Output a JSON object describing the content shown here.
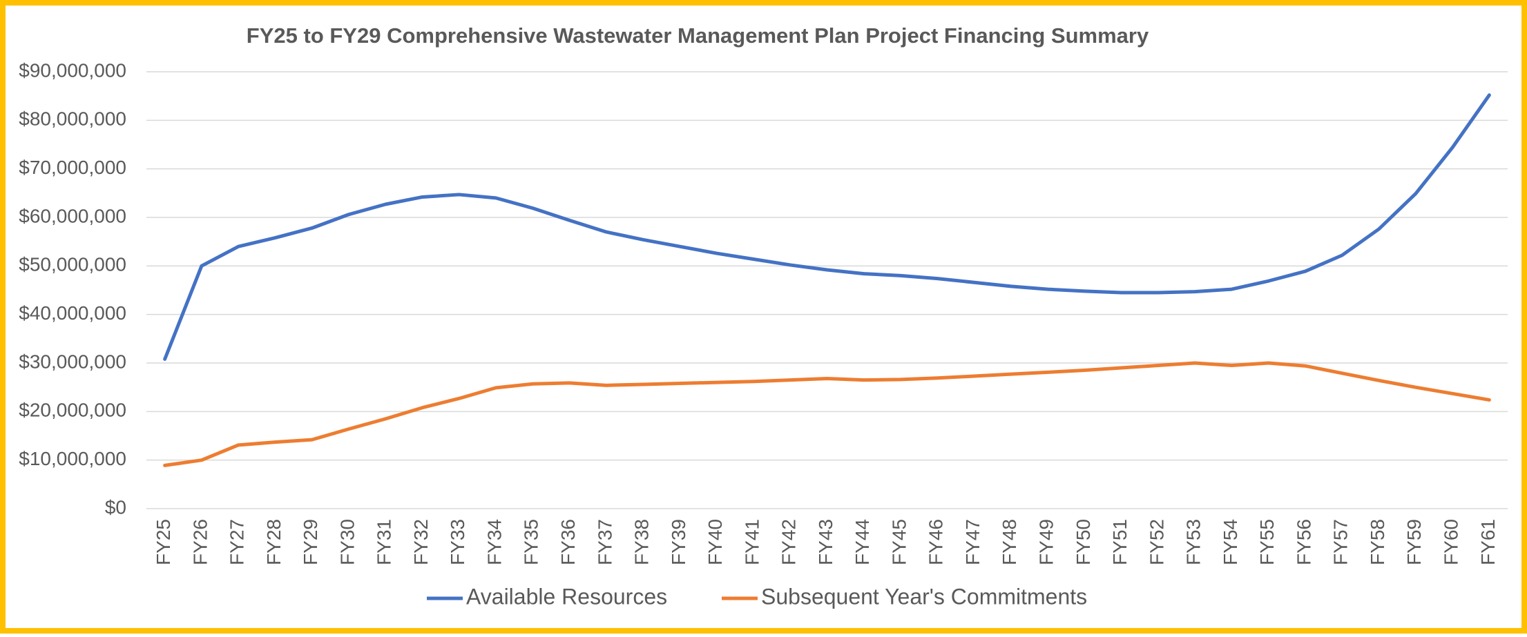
{
  "chart_data": {
    "type": "line",
    "title": "FY25 to FY29 Comprehensive Wastewater Management Plan Project Financing Summary",
    "categories": [
      "FY25",
      "FY26",
      "FY27",
      "FY28",
      "FY29",
      "FY30",
      "FY31",
      "FY32",
      "FY33",
      "FY34",
      "FY35",
      "FY36",
      "FY37",
      "FY38",
      "FY39",
      "FY40",
      "FY41",
      "FY42",
      "FY43",
      "FY44",
      "FY45",
      "FY46",
      "FY47",
      "FY48",
      "FY49",
      "FY50",
      "FY51",
      "FY52",
      "FY53",
      "FY54",
      "FY55",
      "FY56",
      "FY57",
      "FY58",
      "FY59",
      "FY60",
      "FY61"
    ],
    "series": [
      {
        "name": "Available Resources",
        "color": "#4472c4",
        "values": [
          30800000,
          50000000,
          54000000,
          55800000,
          57800000,
          60600000,
          62700000,
          64200000,
          64700000,
          64000000,
          61900000,
          59400000,
          57000000,
          55400000,
          54000000,
          52600000,
          51400000,
          50200000,
          49200000,
          48400000,
          48000000,
          47400000,
          46600000,
          45800000,
          45200000,
          44800000,
          44500000,
          44500000,
          44700000,
          45200000,
          46900000,
          48900000,
          52200000,
          57600000,
          64900000,
          74400000,
          85200000
        ]
      },
      {
        "name": "Subsequent Year's Commitments",
        "color": "#ed7d31",
        "values": [
          8900000,
          10000000,
          13100000,
          13700000,
          14200000,
          16400000,
          18500000,
          20800000,
          22700000,
          24900000,
          25700000,
          25900000,
          25400000,
          25600000,
          25800000,
          26000000,
          26200000,
          26500000,
          26800000,
          26500000,
          26600000,
          26900000,
          27300000,
          27700000,
          28100000,
          28500000,
          29000000,
          29500000,
          30000000,
          29500000,
          30000000,
          29400000,
          27900000,
          26400000,
          25000000,
          23700000,
          22400000
        ]
      }
    ],
    "ylim": [
      0,
      90000000
    ],
    "yticks": [
      {
        "value": 0,
        "label": "$0"
      },
      {
        "value": 10000000,
        "label": "$10,000,000"
      },
      {
        "value": 20000000,
        "label": "$20,000,000"
      },
      {
        "value": 30000000,
        "label": "$30,000,000"
      },
      {
        "value": 40000000,
        "label": "$40,000,000"
      },
      {
        "value": 50000000,
        "label": "$50,000,000"
      },
      {
        "value": 60000000,
        "label": "$60,000,000"
      },
      {
        "value": 70000000,
        "label": "$70,000,000"
      },
      {
        "value": 80000000,
        "label": "$80,000,000"
      },
      {
        "value": 90000000,
        "label": "$90,000,000"
      }
    ],
    "grid": true,
    "legend": "bottom"
  }
}
